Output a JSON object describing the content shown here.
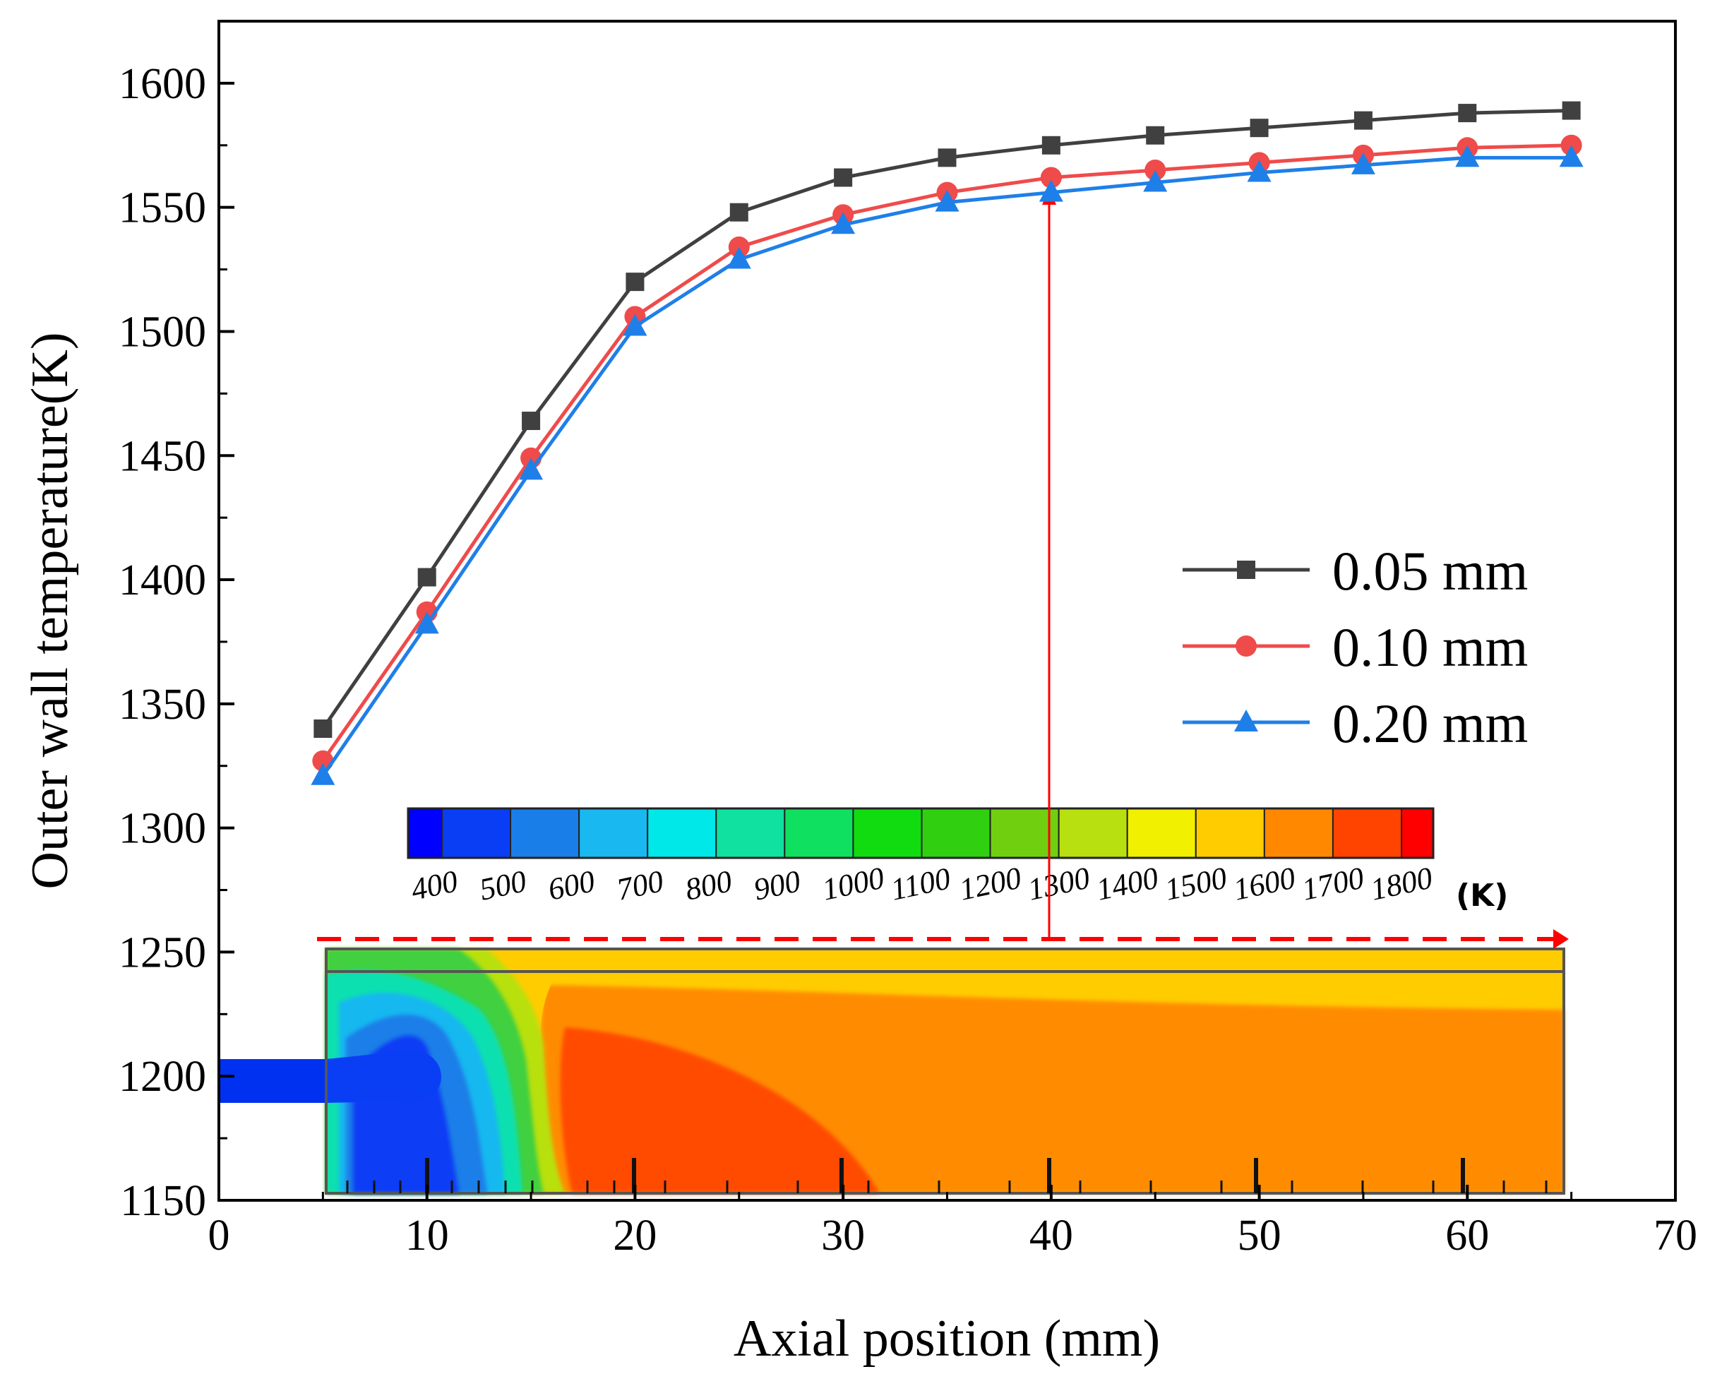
{
  "chart_data": {
    "type": "line",
    "xlabel": "Axial position (mm)",
    "ylabel": "Outer wall temperature(K)",
    "xlim": [
      0,
      70
    ],
    "ylim": [
      1150,
      1625
    ],
    "xticks": [
      0,
      10,
      20,
      30,
      40,
      50,
      60,
      70
    ],
    "yticks": [
      1150,
      1200,
      1250,
      1300,
      1350,
      1400,
      1450,
      1500,
      1550,
      1600
    ],
    "x": [
      5,
      10,
      15,
      20,
      25,
      30,
      35,
      40,
      45,
      50,
      55,
      60,
      65
    ],
    "series": [
      {
        "name": "0.05 mm",
        "color": "#404040",
        "marker": "square",
        "values": [
          1340,
          1401,
          1464,
          1520,
          1548,
          1562,
          1570,
          1575,
          1579,
          1582,
          1585,
          1588,
          1589
        ]
      },
      {
        "name": "0.10 mm",
        "color": "#ef4b4b",
        "marker": "circle",
        "values": [
          1327,
          1387,
          1449,
          1506,
          1534,
          1547,
          1556,
          1562,
          1565,
          1568,
          1571,
          1574,
          1575
        ]
      },
      {
        "name": "0.20 mm",
        "color": "#1f7fe8",
        "marker": "triangle",
        "values": [
          1321,
          1382,
          1444,
          1502,
          1529,
          1543,
          1552,
          1556,
          1560,
          1564,
          1567,
          1570,
          1570
        ]
      }
    ],
    "legend": "center-right",
    "inset": {
      "description": "temperature contour of combustor",
      "colorbar_labels": [
        "400",
        "500",
        "600",
        "700",
        "800",
        "900",
        "1000",
        "1100",
        "1200",
        "1300",
        "1400",
        "1500",
        "1600",
        "1700",
        "1800"
      ],
      "colorbar_unit": "(K)",
      "colorbar_colors": [
        "#0000ff",
        "#0a3ef5",
        "#1a7ee8",
        "#19b8f0",
        "#00e8e8",
        "#10e0a0",
        "#10e060",
        "#10dc10",
        "#30d010",
        "#70d010",
        "#b8e010",
        "#f0f000",
        "#ffcc00",
        "#ff8800",
        "#ff4400",
        "#ff0000"
      ],
      "probe_x": 40
    }
  }
}
